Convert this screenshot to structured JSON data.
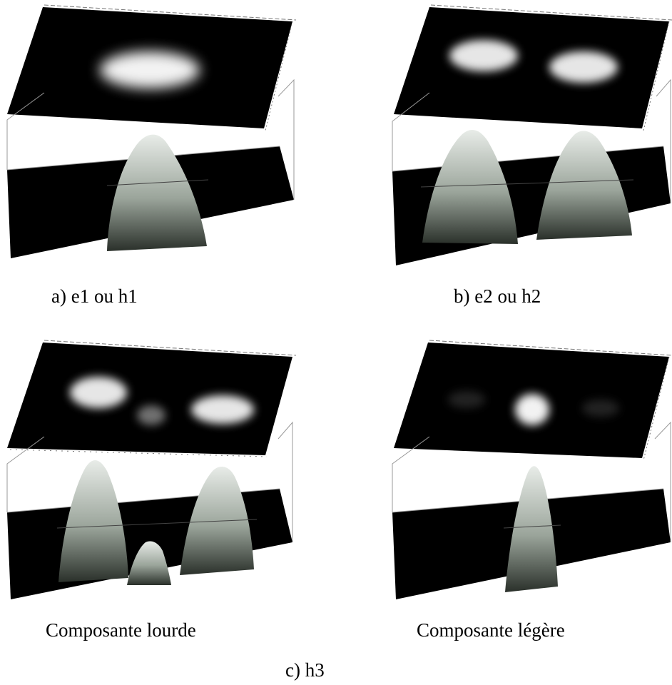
{
  "panels": [
    {
      "id": "a",
      "caption": "a) e1 ou h1",
      "lobes": [
        {
          "amp": 1.0,
          "sigma": 2.6
        }
      ]
    },
    {
      "id": "b",
      "caption": "b) e2 ou h2",
      "lobes": [
        {
          "amp": 1.0,
          "sigma": 2.3
        },
        {
          "amp": 1.0,
          "sigma": 2.3
        }
      ]
    },
    {
      "id": "c-lourde",
      "caption": "Composante lourde",
      "lobes": [
        {
          "amp": 1.0,
          "sigma": 1.9
        },
        {
          "amp": 0.45,
          "sigma": 1.2
        },
        {
          "amp": 1.0,
          "sigma": 1.9
        }
      ]
    },
    {
      "id": "c-legere",
      "caption": "Composante légère",
      "lobes": [
        {
          "amp": 0.12,
          "sigma": 1.8
        },
        {
          "amp": 1.0,
          "sigma": 1.2
        },
        {
          "amp": 0.12,
          "sigma": 1.8
        }
      ]
    }
  ],
  "group_caption": "c) h3",
  "colors": {
    "background": "#000000",
    "surface_light": "#e8ece8",
    "surface_dark": "#2a302a",
    "frame": "#9a9a9a"
  }
}
